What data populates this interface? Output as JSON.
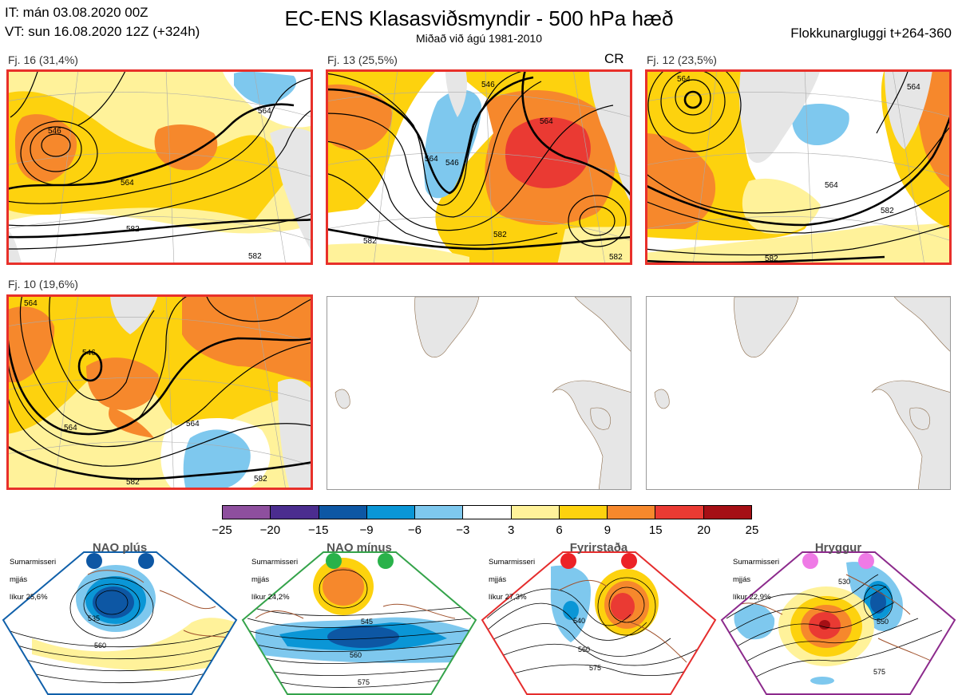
{
  "header": {
    "it": "IT: mán 03.08.2020 00Z",
    "vt": "VT: sun 16.08.2020 12Z  (+324h)",
    "title": "EC-ENS Klasasviðsmyndir - 500 hPa hæð",
    "subtitle": "Miðað við ágú 1981-2010",
    "window": "Flokkunargluggi t+264-360"
  },
  "panels": [
    {
      "label": "Fj. 16 (31,4%)",
      "tag": "",
      "contours": [
        "546",
        "564",
        "582",
        "582",
        "564"
      ]
    },
    {
      "label": "Fj. 13 (25,5%)",
      "tag": "CR",
      "contours": [
        "564",
        "546",
        "564",
        "546",
        "582",
        "582",
        "582"
      ]
    },
    {
      "label": "Fj. 12 (23,5%)",
      "tag": "",
      "contours": [
        "564",
        "564",
        "564",
        "582",
        "582"
      ]
    },
    {
      "label": "Fj. 10 (19,6%)",
      "tag": "",
      "contours": [
        "546",
        "564",
        "564",
        "582",
        "582",
        "564"
      ]
    }
  ],
  "colorbar": {
    "colors": [
      "#8e4f9e",
      "#4b2d8f",
      "#0d57a4",
      "#0a96d6",
      "#7ec8ee",
      "#ffffff",
      "#fff29a",
      "#fdd20e",
      "#f6882c",
      "#ea3a33",
      "#a50f15"
    ],
    "ticks": [
      "−25",
      "−20",
      "−15",
      "−9",
      "−6",
      "−3",
      "3",
      "6",
      "9",
      "15",
      "20",
      "25"
    ]
  },
  "regimes": [
    {
      "name": "NAO plús",
      "season": "Sumarmisseri",
      "smooth": "mjjás",
      "prob": "líkur 25,6%",
      "color": "#1060aa",
      "dot": "#0d57a4",
      "contours": [
        "535",
        "560"
      ]
    },
    {
      "name": "NAO mínus",
      "season": "Sumarmisseri",
      "smooth": "mjjás",
      "prob": "líkur 24,2%",
      "color": "#34a34a",
      "dot": "#29b24a",
      "contours": [
        "545",
        "560",
        "575"
      ]
    },
    {
      "name": "Fyrirstaða",
      "season": "Sumarmisseri",
      "smooth": "mjjás",
      "prob": "líkur 27,3%",
      "color": "#e52d2d",
      "dot": "#ec2227",
      "contours": [
        "540",
        "560",
        "575"
      ]
    },
    {
      "name": "Hryggur",
      "season": "Sumarmisseri",
      "smooth": "mjjás",
      "prob": "líkur 22,9%",
      "color": "#8c2a8c",
      "dot": "#ef7ae6",
      "contours": [
        "530",
        "550",
        "575"
      ]
    }
  ]
}
